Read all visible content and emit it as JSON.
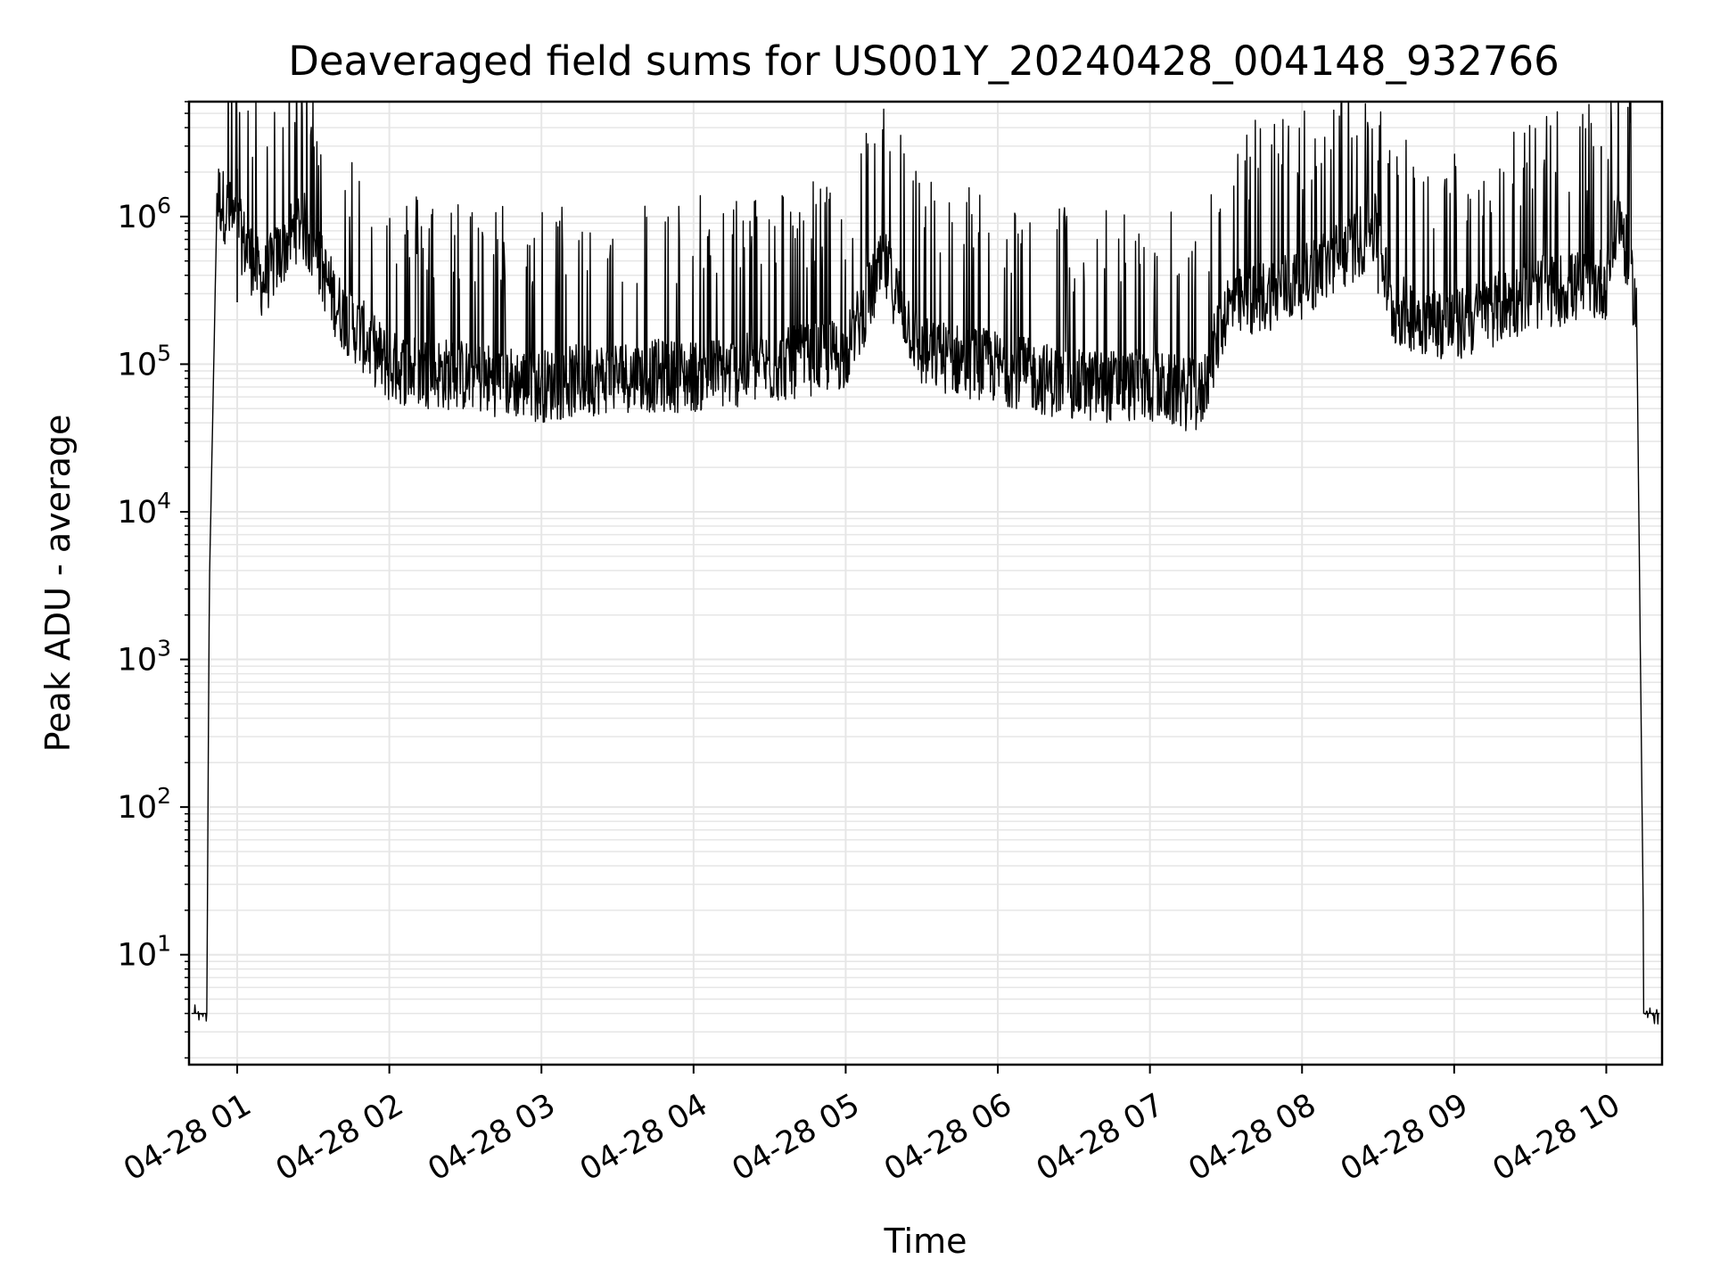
{
  "chart_data": {
    "type": "line",
    "title": "Deaveraged field sums for US001Y_20240428_004148_932766",
    "xlabel": "Time",
    "ylabel": "Peak ADU - average",
    "yscale": "log",
    "ylim": [
      1.8,
      6000000
    ],
    "xlim": [
      "2024-04-28 00:41:00",
      "2024-04-28 10:22:00"
    ],
    "grid": true,
    "line_color": "#000000",
    "x_ticks": [
      {
        "value": "2024-04-28 01:00",
        "label": "04-28 01"
      },
      {
        "value": "2024-04-28 02:00",
        "label": "04-28 02"
      },
      {
        "value": "2024-04-28 03:00",
        "label": "04-28 03"
      },
      {
        "value": "2024-04-28 04:00",
        "label": "04-28 04"
      },
      {
        "value": "2024-04-28 05:00",
        "label": "04-28 05"
      },
      {
        "value": "2024-04-28 06:00",
        "label": "04-28 06"
      },
      {
        "value": "2024-04-28 07:00",
        "label": "04-28 07"
      },
      {
        "value": "2024-04-28 08:00",
        "label": "04-28 08"
      },
      {
        "value": "2024-04-28 09:00",
        "label": "04-28 09"
      },
      {
        "value": "2024-04-28 10:00",
        "label": "04-28 10"
      }
    ],
    "y_ticks": [
      {
        "value": 10,
        "base": "10",
        "exp": "1"
      },
      {
        "value": 100,
        "base": "10",
        "exp": "2"
      },
      {
        "value": 1000,
        "base": "10",
        "exp": "3"
      },
      {
        "value": 10000,
        "base": "10",
        "exp": "4"
      },
      {
        "value": 100000,
        "base": "10",
        "exp": "5"
      },
      {
        "value": 1000000,
        "base": "10",
        "exp": "6"
      }
    ],
    "series_envelope": [
      {
        "x": "2024-04-28 00:42",
        "y": 4
      },
      {
        "x": "2024-04-28 00:48",
        "y": 4
      },
      {
        "x": "2024-04-28 00:49",
        "y": 3000
      },
      {
        "x": "2024-04-28 00:52",
        "y": 1200000
      },
      {
        "x": "2024-04-28 01:00",
        "y": 700000
      },
      {
        "x": "2024-04-28 01:10",
        "y": 300000
      },
      {
        "x": "2024-04-28 01:25",
        "y": 800000
      },
      {
        "x": "2024-04-28 01:40",
        "y": 200000
      },
      {
        "x": "2024-04-28 02:00",
        "y": 80000
      },
      {
        "x": "2024-04-28 02:30",
        "y": 70000
      },
      {
        "x": "2024-04-28 03:00",
        "y": 60000
      },
      {
        "x": "2024-04-28 03:30",
        "y": 70000
      },
      {
        "x": "2024-04-28 04:00",
        "y": 70000
      },
      {
        "x": "2024-04-28 04:30",
        "y": 80000
      },
      {
        "x": "2024-04-28 05:00",
        "y": 100000
      },
      {
        "x": "2024-04-28 05:15",
        "y": 400000
      },
      {
        "x": "2024-04-28 05:30",
        "y": 100000
      },
      {
        "x": "2024-04-28 06:00",
        "y": 80000
      },
      {
        "x": "2024-04-28 06:30",
        "y": 60000
      },
      {
        "x": "2024-04-28 07:00",
        "y": 60000
      },
      {
        "x": "2024-04-28 07:20",
        "y": 50000
      },
      {
        "x": "2024-04-28 07:30",
        "y": 200000
      },
      {
        "x": "2024-04-28 08:00",
        "y": 300000
      },
      {
        "x": "2024-04-28 08:30",
        "y": 700000
      },
      {
        "x": "2024-04-28 08:35",
        "y": 200000
      },
      {
        "x": "2024-04-28 09:00",
        "y": 150000
      },
      {
        "x": "2024-04-28 09:30",
        "y": 250000
      },
      {
        "x": "2024-04-28 10:00",
        "y": 300000
      },
      {
        "x": "2024-04-28 10:05",
        "y": 900000
      },
      {
        "x": "2024-04-28 10:12",
        "y": 200000
      },
      {
        "x": "2024-04-28 10:15",
        "y": 4
      },
      {
        "x": "2024-04-28 10:21",
        "y": 4
      }
    ],
    "spikes": [
      {
        "x": "2024-04-28 01:00",
        "y": 2100000
      },
      {
        "x": "2024-04-28 08:30",
        "y": 2400000
      },
      {
        "x": "2024-04-28 08:34",
        "y": 2300000
      },
      {
        "x": "2024-04-28 09:58",
        "y": 3000000
      }
    ]
  }
}
